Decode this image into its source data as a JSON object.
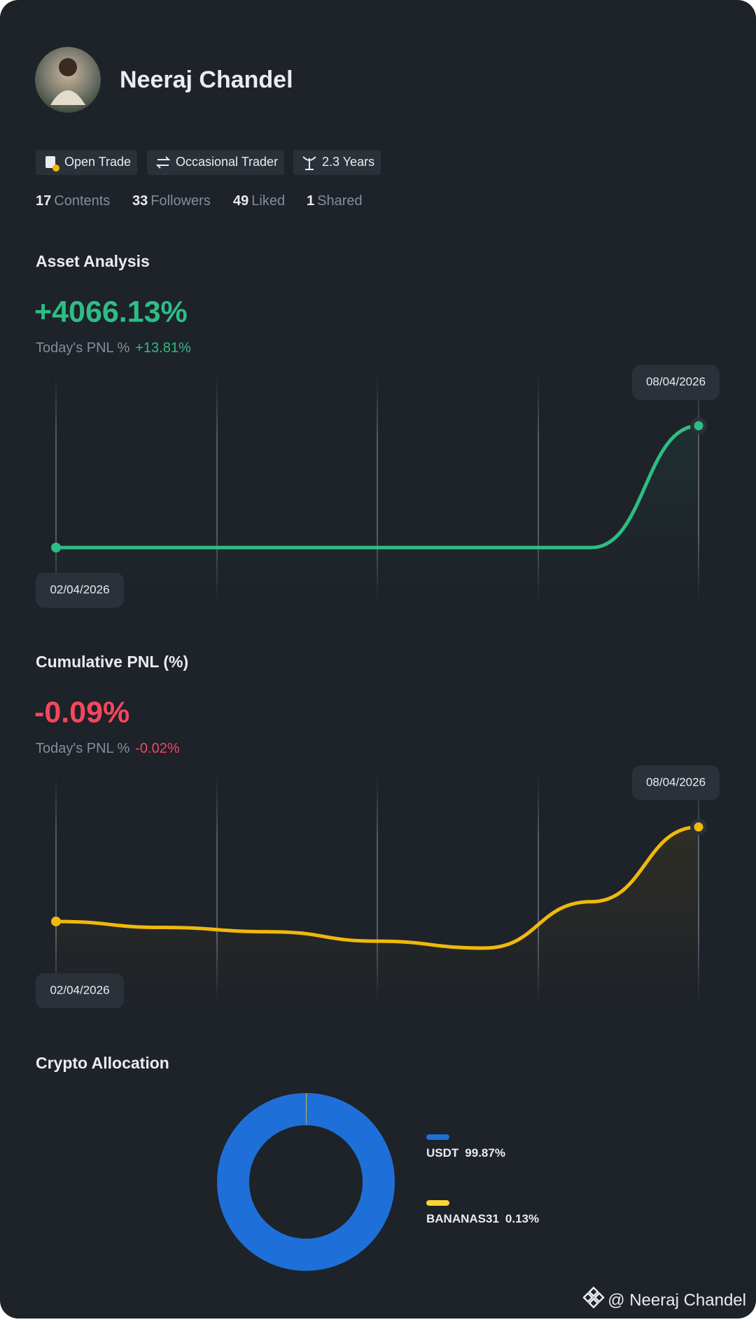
{
  "profile": {
    "name": "Neeraj Chandel",
    "tags": [
      "Open Trade",
      "Occasional Trader",
      "2.3 Years"
    ],
    "stats": [
      {
        "value": 17,
        "label": "Contents"
      },
      {
        "value": 33,
        "label": "Followers"
      },
      {
        "value": 49,
        "label": "Liked"
      },
      {
        "value": 1,
        "label": "Shared"
      }
    ]
  },
  "asset_analysis": {
    "title": "Asset Analysis",
    "value": "+4066.13%",
    "today_label": "Today's PNL %",
    "today_value": "+13.81%",
    "chart": {
      "type": "line",
      "color": "#2ebd85",
      "values": [
        0,
        0,
        0,
        0,
        0,
        0,
        4066.13
      ],
      "start_date": "02/04/2026",
      "end_date": "08/04/2026"
    }
  },
  "cumulative_pnl": {
    "title": "Cumulative PNL (%)",
    "value": "-0.09%",
    "today_label": "Today's PNL %",
    "today_value": "-0.02%",
    "chart": {
      "type": "line",
      "color": "#f0b90b",
      "values": [
        -0.2,
        -0.207,
        -0.212,
        -0.223,
        -0.231,
        -0.177,
        -0.09
      ],
      "start_date": "02/04/2026",
      "end_date": "08/04/2026"
    }
  },
  "crypto_allocation": {
    "title": "Crypto Allocation",
    "chart": {
      "type": "pie",
      "categories": [
        "USDT",
        "BANANAS31"
      ],
      "values": [
        99.87,
        0.13
      ],
      "value_labels": [
        "99.87%",
        "0.13%"
      ],
      "colors": [
        "#1f6fd8",
        "#fcd535"
      ]
    }
  },
  "watermark": "@ Neeraj Chandel"
}
